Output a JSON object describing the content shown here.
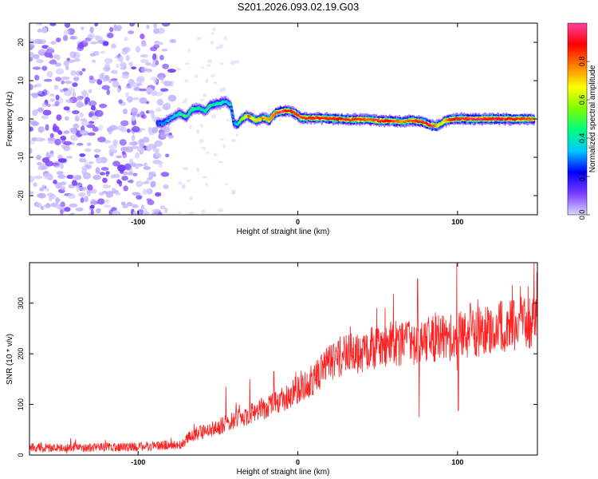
{
  "figure": {
    "title": "S201.2026.093.02.19.G03"
  },
  "chart_data": [
    {
      "type": "heatmap",
      "panel": "spectrogram",
      "xlabel": "Height of straight line (km)",
      "ylabel": "Frequency (Hz)",
      "xlim": [
        -168,
        150
      ],
      "ylim": [
        -25,
        25
      ],
      "x_ticks": [
        -100,
        0,
        100
      ],
      "x_tick_labels": [
        "-100",
        "0",
        "100"
      ],
      "y_ticks": [
        -20,
        -10,
        0,
        10,
        20
      ],
      "y_tick_labels": [
        "-20",
        "-10",
        "0",
        "10",
        "20"
      ],
      "colorbar": {
        "label": "Normalized spectral amplitude",
        "range": [
          0,
          1
        ],
        "ticks": [
          0.0,
          0.2,
          0.4,
          0.6,
          0.8
        ],
        "tick_labels": [
          "0.0",
          "0.2",
          "0.4",
          "0.6",
          "0.8"
        ],
        "colors": [
          "#d8d8ff",
          "#7a3cff",
          "#0000ff",
          "#00c8ff",
          "#00ff80",
          "#7dff00",
          "#ffff00",
          "#ff8000",
          "#ff0000",
          "#ff40a0"
        ]
      },
      "noise_region": {
        "x_range": [
          -168,
          -78
        ],
        "dominant_amplitude": 0.1
      },
      "signal_trace": {
        "x": [
          -88,
          -85,
          -82,
          -78,
          -74,
          -70,
          -66,
          -62,
          -58,
          -55,
          -52,
          -48,
          -45,
          -42,
          -40,
          -38,
          -35,
          -32,
          -29,
          -26,
          -22,
          -18,
          -14,
          -10,
          -6,
          -2,
          2,
          8,
          14,
          20,
          26,
          32,
          38,
          44,
          50,
          56,
          62,
          66,
          70,
          74,
          78,
          82,
          86,
          89,
          92,
          95,
          100,
          110,
          120,
          130,
          140,
          148
        ],
        "frequency": [
          -1,
          -1.2,
          -0.5,
          0.5,
          1.5,
          0.5,
          2.5,
          2.8,
          2,
          3.5,
          3.8,
          4.2,
          4.6,
          3.5,
          -1,
          -1.5,
          0,
          0.8,
          0.3,
          -0.5,
          0.3,
          -0.3,
          1.5,
          2,
          2.2,
          1.6,
          0.3,
          0.2,
          0.2,
          0.1,
          0,
          -0.2,
          -0.1,
          -0.2,
          -0.4,
          -0.5,
          -0.6,
          -0.8,
          -0.4,
          -0.5,
          -0.7,
          -1.5,
          -1.9,
          -1.4,
          -0.5,
          -0.2,
          0,
          0,
          0,
          0,
          0,
          0
        ],
        "amplitude": [
          0.25,
          0.3,
          0.3,
          0.35,
          0.4,
          0.4,
          0.45,
          0.4,
          0.4,
          0.45,
          0.4,
          0.45,
          0.35,
          0.35,
          0.3,
          0.35,
          0.6,
          0.7,
          0.65,
          0.7,
          0.7,
          0.75,
          0.8,
          0.85,
          0.9,
          0.85,
          0.85,
          0.85,
          0.88,
          0.85,
          0.9,
          0.85,
          0.85,
          0.8,
          0.85,
          0.9,
          0.8,
          0.75,
          0.8,
          0.85,
          0.85,
          0.9,
          0.8,
          0.6,
          0.7,
          0.85,
          0.92,
          0.95,
          0.92,
          0.9,
          0.85,
          0.8
        ]
      }
    },
    {
      "type": "line",
      "panel": "snr",
      "xlabel": "Height of straight line (km)",
      "ylabel": "SNR (10 * v/v)",
      "xlim": [
        -168,
        150
      ],
      "ylim": [
        0,
        380
      ],
      "x_ticks": [
        -100,
        0,
        100
      ],
      "x_tick_labels": [
        "-100",
        "0",
        "100"
      ],
      "y_ticks": [
        0,
        100,
        200,
        300
      ],
      "y_tick_labels": [
        "0",
        "100",
        "200",
        "300"
      ],
      "color": "#ff2020",
      "series": [
        {
          "name": "SNR",
          "x": [
            -168,
            -140,
            -110,
            -90,
            -80,
            -72,
            -68,
            -60,
            -50,
            -40,
            -30,
            -20,
            -10,
            0,
            10,
            20,
            30,
            40,
            50,
            60,
            70,
            80,
            90,
            100,
            110,
            120,
            130,
            140,
            150
          ],
          "trend": [
            15,
            15,
            15,
            18,
            20,
            22,
            38,
            45,
            55,
            70,
            80,
            95,
            110,
            130,
            150,
            185,
            200,
            205,
            215,
            220,
            220,
            230,
            230,
            235,
            240,
            250,
            255,
            260,
            265
          ],
          "spikes": [
            {
              "x": 75,
              "y": 348
            },
            {
              "x": 76,
              "y": 75
            },
            {
              "x": 99.5,
              "y": 378
            },
            {
              "x": 100.5,
              "y": 88
            },
            {
              "x": -45,
              "y": 135
            },
            {
              "x": -30,
              "y": 150
            },
            {
              "x": -15,
              "y": 165
            },
            {
              "x": 108,
              "y": 300
            },
            {
              "x": 145,
              "y": 310
            }
          ]
        }
      ]
    }
  ]
}
